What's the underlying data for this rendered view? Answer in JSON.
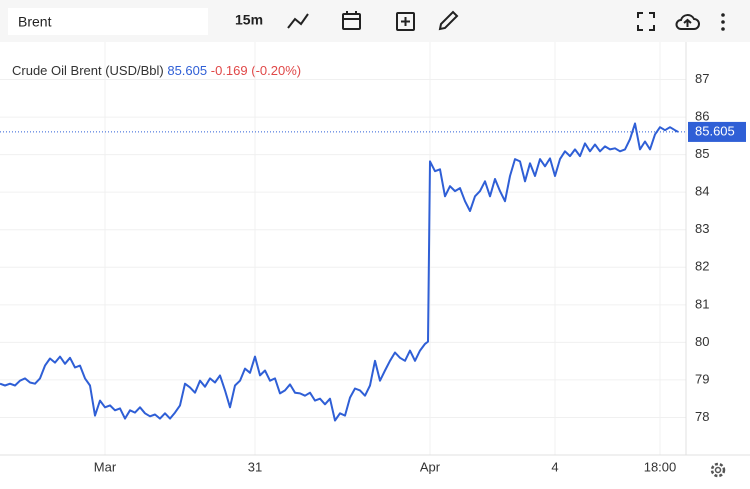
{
  "toolbar": {
    "search": "Brent",
    "interval": "15m"
  },
  "chart_data": {
    "type": "line",
    "title": "Crude Oil Brent (USD/Bbl)",
    "last_price": 85.605,
    "change": "-0.169",
    "change_percent": "(-0.20%)",
    "x": [
      0,
      1,
      2,
      3,
      4,
      5,
      6,
      7,
      8,
      9,
      10,
      11,
      12,
      13,
      14,
      15,
      16,
      17,
      18,
      19,
      20,
      21,
      22,
      23,
      24,
      25,
      26,
      27,
      28,
      29,
      30,
      31,
      32,
      33,
      34,
      35,
      36,
      37,
      38,
      39,
      40,
      41,
      42,
      43,
      44,
      45,
      46,
      47,
      48,
      49,
      50,
      51,
      52,
      53,
      54,
      55,
      56,
      57,
      58,
      59,
      60,
      61,
      62,
      63,
      64,
      65,
      66,
      67,
      68,
      69,
      70,
      71,
      72,
      73,
      74,
      75,
      76,
      77,
      78,
      79,
      80,
      81,
      82,
      83,
      84,
      85,
      85.6,
      86,
      87,
      88,
      89,
      90,
      91,
      92,
      93,
      94,
      95,
      96,
      97,
      98,
      99,
      100,
      101,
      102,
      103,
      104,
      105,
      106,
      107,
      108,
      109,
      110,
      111,
      112,
      113,
      114,
      115,
      116,
      117,
      118,
      119,
      120,
      121,
      122,
      123,
      124,
      125,
      126,
      127,
      128,
      129,
      130,
      131,
      132,
      133,
      134,
      135,
      135.6
    ],
    "series": [
      {
        "name": "Crude Oil Brent (USD/Bbl)",
        "color": "#2f5fd6",
        "values": [
          78.9,
          78.85,
          78.9,
          78.85,
          78.98,
          79.04,
          78.93,
          78.9,
          79.04,
          79.38,
          79.57,
          79.46,
          79.62,
          79.43,
          79.59,
          79.33,
          79.38,
          79.04,
          78.85,
          78.05,
          78.45,
          78.27,
          78.32,
          78.19,
          78.24,
          77.97,
          78.19,
          78.13,
          78.27,
          78.11,
          78.03,
          78.08,
          77.97,
          78.11,
          77.97,
          78.13,
          78.32,
          78.9,
          78.8,
          78.66,
          78.98,
          78.82,
          79.04,
          78.93,
          79.12,
          78.72,
          78.27,
          78.85,
          78.98,
          79.3,
          79.19,
          79.62,
          79.12,
          79.25,
          78.98,
          79.04,
          78.64,
          78.72,
          78.88,
          78.66,
          78.64,
          78.58,
          78.66,
          78.45,
          78.5,
          78.35,
          78.5,
          77.92,
          78.11,
          78.05,
          78.53,
          78.77,
          78.72,
          78.58,
          78.85,
          79.51,
          78.98,
          79.25,
          79.51,
          79.73,
          79.59,
          79.51,
          79.78,
          79.51,
          79.78,
          79.96,
          80.02,
          84.82,
          84.56,
          84.61,
          83.89,
          84.16,
          84.03,
          84.11,
          83.76,
          83.5,
          83.89,
          84.03,
          84.29,
          83.89,
          84.35,
          84.03,
          83.76,
          84.43,
          84.88,
          84.82,
          84.29,
          84.77,
          84.43,
          84.88,
          84.69,
          84.9,
          84.43,
          84.88,
          85.09,
          84.96,
          85.14,
          84.96,
          85.3,
          85.09,
          85.27,
          85.09,
          85.22,
          85.14,
          85.17,
          85.09,
          85.14,
          85.41,
          85.83,
          85.14,
          85.35,
          85.14,
          85.54,
          85.73,
          85.65,
          85.73,
          85.65,
          85.605
        ]
      }
    ],
    "xlim": [
      0,
      137.2
    ],
    "xticks": [
      {
        "value": 21,
        "label": "Mar"
      },
      {
        "value": 51,
        "label": "31"
      },
      {
        "value": 86,
        "label": "Apr"
      },
      {
        "value": 111,
        "label": "4"
      },
      {
        "value": 132,
        "label": "18:00"
      }
    ],
    "ylim": [
      77,
      88
    ],
    "yticks": [
      78,
      79,
      80,
      81,
      82,
      83,
      84,
      85,
      86,
      87
    ],
    "grid": true
  }
}
